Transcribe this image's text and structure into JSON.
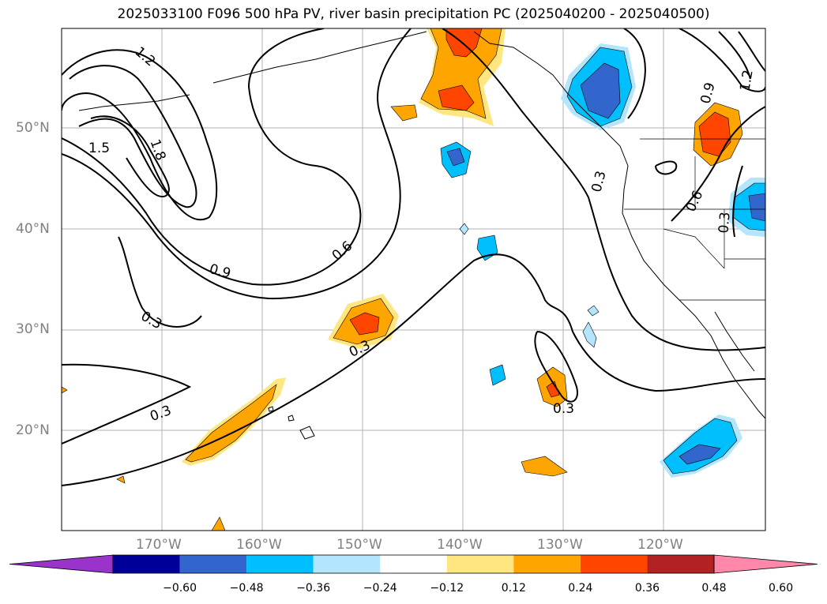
{
  "title": "2025033100 F096 500 hPa PV, river basin precipitation PC (2025040200 - 2025040500)",
  "map": {
    "lat_labels": [
      {
        "lat": 50,
        "text": "50°N"
      },
      {
        "lat": 40,
        "text": "40°N"
      },
      {
        "lat": 30,
        "text": "30°N"
      },
      {
        "lat": 20,
        "text": "20°N"
      }
    ],
    "lon_labels": [
      {
        "lon": -170,
        "text": "170°W"
      },
      {
        "lon": -160,
        "text": "160°W"
      },
      {
        "lon": -150,
        "text": "150°W"
      },
      {
        "lon": -140,
        "text": "140°W"
      },
      {
        "lon": -130,
        "text": "130°W"
      },
      {
        "lon": -120,
        "text": "120°W"
      }
    ],
    "contour_labels": [
      "1.2",
      "1.5",
      "1.8",
      "0.9",
      "0.6",
      "0.3",
      "0.3",
      "0.3",
      "0.3",
      "0.3",
      "0.9",
      "1.2",
      "0.6",
      "0.3"
    ]
  },
  "colorbar": {
    "colors": [
      "#9933cc",
      "#000099",
      "#3366cc",
      "#00bfff",
      "#b3e5fc",
      "#ffffff",
      "#ffe680",
      "#ffa500",
      "#ff4500",
      "#b22222",
      "#ff88aa"
    ],
    "ticks": [
      "−0.60",
      "−0.48",
      "−0.36",
      "−0.24",
      "−0.12",
      "0.12",
      "0.24",
      "0.36",
      "0.48",
      "0.60"
    ]
  }
}
